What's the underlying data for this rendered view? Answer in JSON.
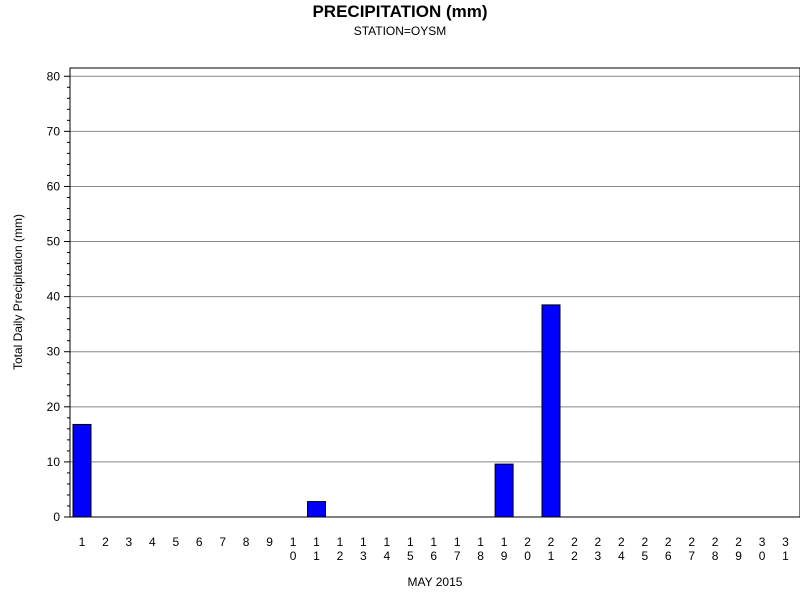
{
  "chart_data": {
    "type": "bar",
    "title": "PRECIPITATION (mm)",
    "subtitle": "STATION=OYSM",
    "xlabel": "MAY 2015",
    "ylabel": "Total Daily Precipitation (mm)",
    "ylim": [
      0,
      80
    ],
    "yticks": [
      0,
      10,
      20,
      30,
      40,
      50,
      60,
      70,
      80
    ],
    "grid": true,
    "bar_color": "#0000ff",
    "categories": [
      "1",
      "2",
      "3",
      "4",
      "5",
      "6",
      "7",
      "8",
      "9",
      "10",
      "11",
      "12",
      "13",
      "14",
      "15",
      "16",
      "17",
      "18",
      "19",
      "20",
      "21",
      "22",
      "23",
      "24",
      "25",
      "26",
      "27",
      "28",
      "29",
      "30",
      "31"
    ],
    "values": [
      16.8,
      0,
      0,
      0,
      0,
      0,
      0,
      0,
      0,
      0,
      2.8,
      0,
      0,
      0,
      0,
      0,
      0,
      0,
      9.6,
      0,
      38.5,
      0,
      0,
      0,
      0,
      0,
      0,
      0,
      0,
      0,
      0
    ]
  }
}
